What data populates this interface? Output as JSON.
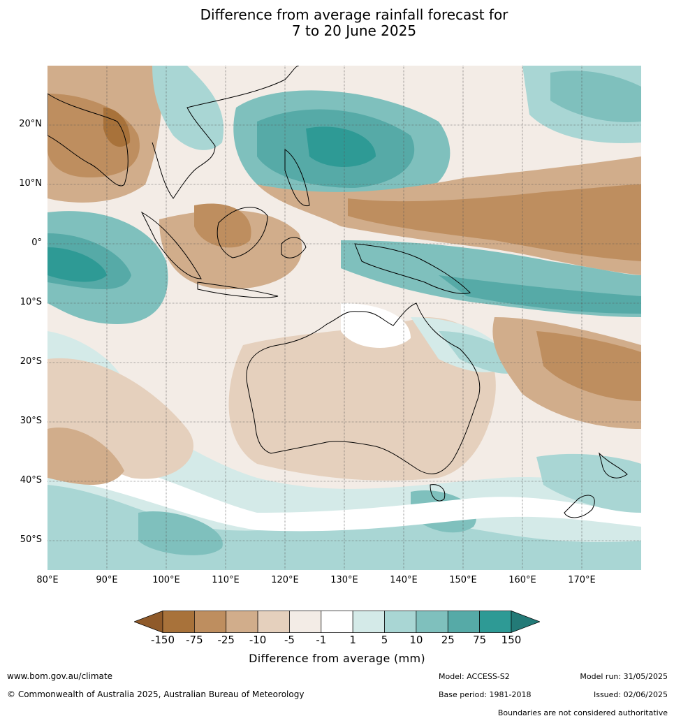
{
  "title": {
    "line1": "Difference from average rainfall forecast for",
    "line2": "7 to 20 June 2025"
  },
  "map": {
    "lat_labels": [
      "20°N",
      "10°N",
      "0°",
      "10°S",
      "20°S",
      "30°S",
      "40°S",
      "50°S"
    ],
    "lon_labels": [
      "80°E",
      "90°E",
      "100°E",
      "110°E",
      "120°E",
      "130°E",
      "140°E",
      "150°E",
      "160°E",
      "170°E"
    ],
    "lon_range": [
      80,
      180
    ],
    "lat_range": [
      -55,
      30
    ],
    "gridlines": true
  },
  "legend": {
    "title": "Difference from average (mm)",
    "ticks": [
      "-150",
      "-75",
      "-25",
      "-10",
      "-5",
      "-1",
      "1",
      "5",
      "10",
      "25",
      "75",
      "150"
    ],
    "colors": [
      "#a8723a",
      "#be8e5f",
      "#d1ad8b",
      "#e5d0bd",
      "#f3ece6",
      "#ffffff",
      "#d4eae8",
      "#a9d6d4",
      "#7fc0bd",
      "#56aaa7",
      "#2e9a95"
    ],
    "low_extend_color": "#8f5a2a",
    "high_extend_color": "#237a77"
  },
  "footer": {
    "website": "www.bom.gov.au/climate",
    "copyright": "© Commonwealth of Australia 2025, Australian Bureau of Meteorology",
    "model": "Model: ACCESS-S2",
    "base_period": "Base period: 1981-2018",
    "model_run": "Model run: 31/05/2025",
    "issued": "Issued: 02/06/2025",
    "disclaimer": "Boundaries are not considered authoritative"
  }
}
